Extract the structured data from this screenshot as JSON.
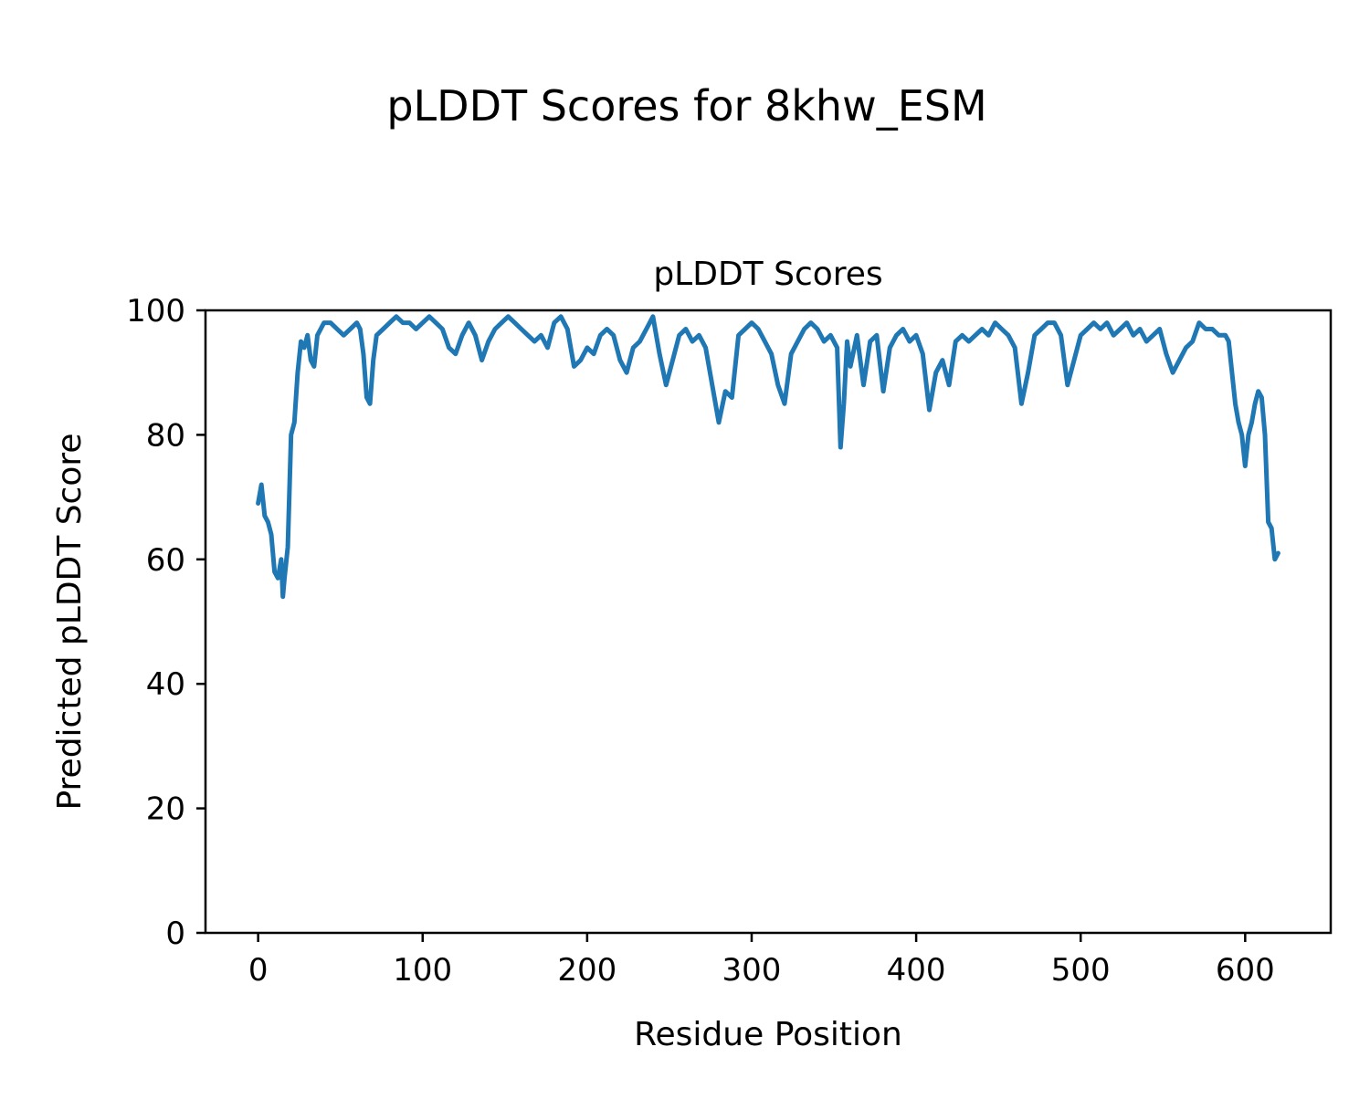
{
  "figure": {
    "suptitle": "pLDDT Scores for 8khw_ESM"
  },
  "chart_data": {
    "type": "line",
    "suptitle": "pLDDT Scores for 8khw_ESM",
    "title": "pLDDT Scores",
    "xlabel": "Residue Position",
    "ylabel": "Predicted pLDDT Score",
    "xlim": [
      -32,
      652
    ],
    "ylim": [
      0,
      100
    ],
    "xticks": [
      0,
      100,
      200,
      300,
      400,
      500,
      600
    ],
    "yticks": [
      0,
      20,
      40,
      60,
      80,
      100
    ],
    "grid": false,
    "legend_position": "none",
    "line_color": "#1f77b4",
    "line_width": 5,
    "series": [
      {
        "name": "pLDDT",
        "x": [
          0,
          2,
          4,
          6,
          8,
          10,
          12,
          14,
          15,
          16,
          18,
          20,
          22,
          24,
          26,
          28,
          30,
          32,
          34,
          36,
          38,
          40,
          44,
          48,
          52,
          56,
          60,
          62,
          64,
          66,
          68,
          70,
          72,
          76,
          80,
          84,
          88,
          92,
          96,
          100,
          104,
          108,
          112,
          116,
          120,
          124,
          128,
          132,
          136,
          140,
          144,
          148,
          152,
          156,
          160,
          164,
          168,
          172,
          176,
          180,
          184,
          188,
          192,
          196,
          200,
          204,
          208,
          212,
          216,
          220,
          224,
          228,
          232,
          236,
          240,
          244,
          248,
          252,
          256,
          260,
          264,
          268,
          272,
          276,
          280,
          284,
          288,
          292,
          296,
          300,
          304,
          308,
          312,
          316,
          320,
          324,
          328,
          332,
          336,
          340,
          344,
          348,
          352,
          354,
          356,
          358,
          360,
          364,
          368,
          372,
          376,
          380,
          384,
          388,
          392,
          396,
          400,
          404,
          408,
          412,
          416,
          420,
          424,
          428,
          432,
          436,
          440,
          444,
          448,
          452,
          456,
          460,
          464,
          468,
          472,
          476,
          480,
          484,
          488,
          492,
          496,
          500,
          504,
          508,
          512,
          516,
          520,
          524,
          528,
          532,
          536,
          540,
          544,
          548,
          552,
          556,
          560,
          564,
          568,
          572,
          576,
          580,
          584,
          588,
          590,
          592,
          594,
          596,
          598,
          600,
          602,
          604,
          606,
          608,
          610,
          612,
          614,
          616,
          618,
          620
        ],
        "y": [
          69,
          72,
          67,
          66,
          64,
          58,
          57,
          60,
          54,
          57,
          62,
          80,
          82,
          90,
          95,
          94,
          96,
          92,
          91,
          96,
          97,
          98,
          98,
          97,
          96,
          97,
          98,
          97,
          93,
          86,
          85,
          92,
          96,
          97,
          98,
          99,
          98,
          98,
          97,
          98,
          99,
          98,
          97,
          94,
          93,
          96,
          98,
          96,
          92,
          95,
          97,
          98,
          99,
          98,
          97,
          96,
          95,
          96,
          94,
          98,
          99,
          97,
          91,
          92,
          94,
          93,
          96,
          97,
          96,
          92,
          90,
          94,
          95,
          97,
          99,
          93,
          88,
          92,
          96,
          97,
          95,
          96,
          94,
          88,
          82,
          87,
          86,
          96,
          97,
          98,
          97,
          95,
          93,
          88,
          85,
          93,
          95,
          97,
          98,
          97,
          95,
          96,
          94,
          78,
          85,
          95,
          91,
          96,
          88,
          95,
          96,
          87,
          94,
          96,
          97,
          95,
          96,
          93,
          84,
          90,
          92,
          88,
          95,
          96,
          95,
          96,
          97,
          96,
          98,
          97,
          96,
          94,
          85,
          90,
          96,
          97,
          98,
          98,
          96,
          88,
          92,
          96,
          97,
          98,
          97,
          98,
          96,
          97,
          98,
          96,
          97,
          95,
          96,
          97,
          93,
          90,
          92,
          94,
          95,
          98,
          97,
          97,
          96,
          96,
          95,
          90,
          85,
          82,
          80,
          75,
          80,
          82,
          85,
          87,
          86,
          80,
          66,
          65,
          60,
          61
        ]
      }
    ]
  }
}
